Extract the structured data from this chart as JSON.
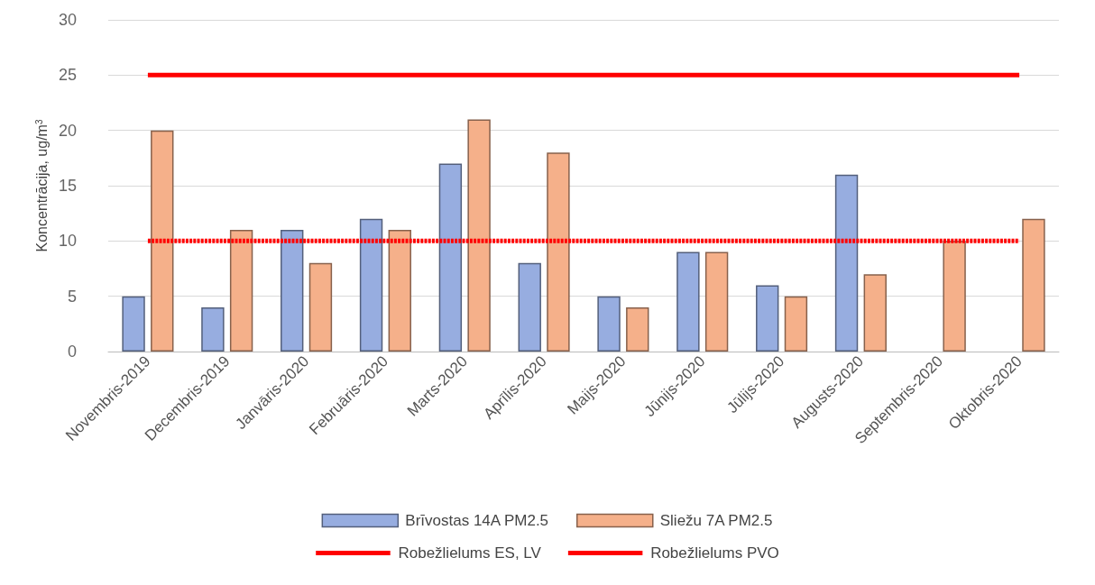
{
  "chart_data": {
    "type": "bar",
    "ylabel": "Koncentrācija, ug/m$^{3}$",
    "categories": [
      "Novembris-2019",
      "Decembris-2019",
      "Janvāris-2020",
      "Februāris-2020",
      "Marts-2020",
      "Aprīlis-2020",
      "Maijs-2020",
      "Jūnijs-2020",
      "Jūlijs-2020",
      "Augusts-2020",
      "Septembris-2020",
      "Oktobris-2020"
    ],
    "series": [
      {
        "name": "Brīvostas 14A PM2.5",
        "color": "#97ade0",
        "values": [
          5,
          4,
          11,
          12,
          17,
          8,
          5,
          9,
          6,
          16,
          null,
          null
        ]
      },
      {
        "name": "Sliežu 7A PM2.5",
        "color": "#f5b08a",
        "values": [
          20,
          11,
          8,
          11,
          21,
          18,
          4,
          9,
          5,
          7,
          10,
          12
        ]
      }
    ],
    "ref_lines": [
      {
        "axis": "y",
        "value": 25,
        "label": "Robežlielums ES, LV",
        "color": "#ff0000",
        "line_style": "solid"
      },
      {
        "axis": "y",
        "value": 10,
        "label": "Robežlielums PVO",
        "color": "#ff0000",
        "line_style": "dashed"
      }
    ],
    "ylim": [
      0,
      30
    ],
    "yticks": [
      0,
      5,
      10,
      15,
      20,
      25,
      30
    ],
    "grid": "y",
    "legend": "bottom"
  }
}
